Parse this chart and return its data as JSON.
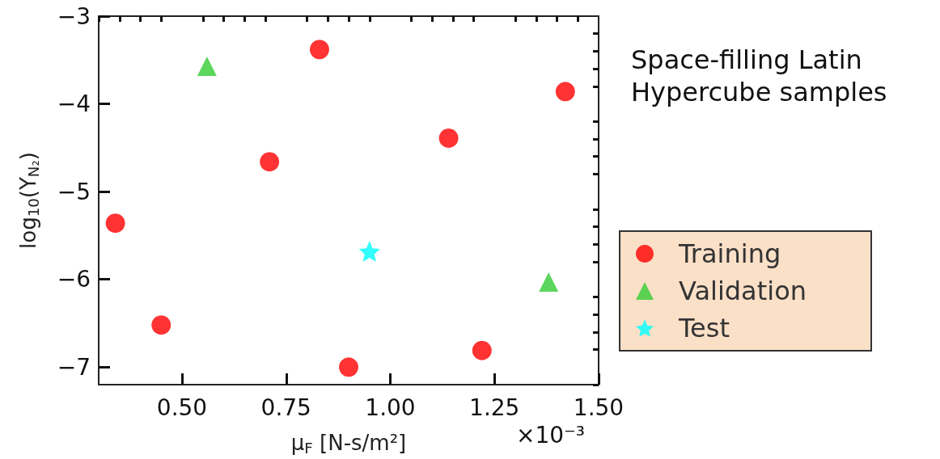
{
  "chart_data": {
    "type": "scatter",
    "xlabel": "μ$_{F}$ [N-s/m²]",
    "ylabel": "log$_{10}$(Y$_{N₂}$)",
    "xlim": [
      0.3,
      1.5
    ],
    "xticks": [
      {
        "value": 0.3,
        "label": null
      },
      {
        "value": 0.35,
        "label": null
      },
      {
        "value": 0.4,
        "label": null
      },
      {
        "value": 0.45,
        "label": null
      },
      {
        "value": 0.5,
        "label": "0.50"
      },
      {
        "value": 0.55,
        "label": null
      },
      {
        "value": 0.6,
        "label": null
      },
      {
        "value": 0.65,
        "label": null
      },
      {
        "value": 0.7,
        "label": null
      },
      {
        "value": 0.75,
        "label": "0.75"
      },
      {
        "value": 0.8,
        "label": null
      },
      {
        "value": 0.85,
        "label": null
      },
      {
        "value": 0.9,
        "label": null
      },
      {
        "value": 0.95,
        "label": null
      },
      {
        "value": 1.0,
        "label": "1.00"
      },
      {
        "value": 1.05,
        "label": null
      },
      {
        "value": 1.1,
        "label": null
      },
      {
        "value": 1.15,
        "label": null
      },
      {
        "value": 1.2,
        "label": null
      },
      {
        "value": 1.25,
        "label": "1.25"
      },
      {
        "value": 1.3,
        "label": null
      },
      {
        "value": 1.35,
        "label": null
      },
      {
        "value": 1.4,
        "label": null
      },
      {
        "value": 1.45,
        "label": null
      },
      {
        "value": 1.5,
        "label": "1.50"
      }
    ],
    "ylim": [
      -7.2,
      -3
    ],
    "yticks": [
      {
        "value": -7.2,
        "label": null
      },
      {
        "value": -7,
        "label": "−7"
      },
      {
        "value": -6.8,
        "label": null
      },
      {
        "value": -6.6,
        "label": null
      },
      {
        "value": -6.4,
        "label": null
      },
      {
        "value": -6.2,
        "label": null
      },
      {
        "value": -6,
        "label": "−6"
      },
      {
        "value": -5.8,
        "label": null
      },
      {
        "value": -5.6,
        "label": null
      },
      {
        "value": -5.4,
        "label": null
      },
      {
        "value": -5.2,
        "label": null
      },
      {
        "value": -5,
        "label": "−5"
      },
      {
        "value": -4.8,
        "label": null
      },
      {
        "value": -4.6,
        "label": null
      },
      {
        "value": -4.4,
        "label": null
      },
      {
        "value": -4.2,
        "label": null
      },
      {
        "value": -4,
        "label": "−4"
      },
      {
        "value": -3.8,
        "label": null
      },
      {
        "value": -3.6,
        "label": null
      },
      {
        "value": -3.4,
        "label": null
      },
      {
        "value": -3.2,
        "label": null
      },
      {
        "value": -3,
        "label": "−3"
      }
    ],
    "series": [
      {
        "name": "Training",
        "color": "#ff0000",
        "marker": "circle",
        "x": [
          0.34,
          0.45,
          0.71,
          0.83,
          0.9,
          1.14,
          1.22,
          1.42
        ],
        "values": [
          -5.36,
          -6.52,
          -4.66,
          -3.38,
          -7.0,
          -4.39,
          -6.81,
          -3.86
        ]
      },
      {
        "name": "Validation",
        "color": "#33cc33",
        "marker": "triangle",
        "x": [
          0.56,
          1.38
        ],
        "values": [
          -3.57,
          -6.03
        ]
      },
      {
        "name": "Test",
        "color": "#00ffff",
        "marker": "star",
        "x": [
          0.95
        ],
        "values": [
          -5.68
        ]
      }
    ],
    "legend": "right",
    "grid": false,
    "annotations": [
      "Space-filling Latin Hypercube samples",
      "×10⁻³"
    ]
  }
}
